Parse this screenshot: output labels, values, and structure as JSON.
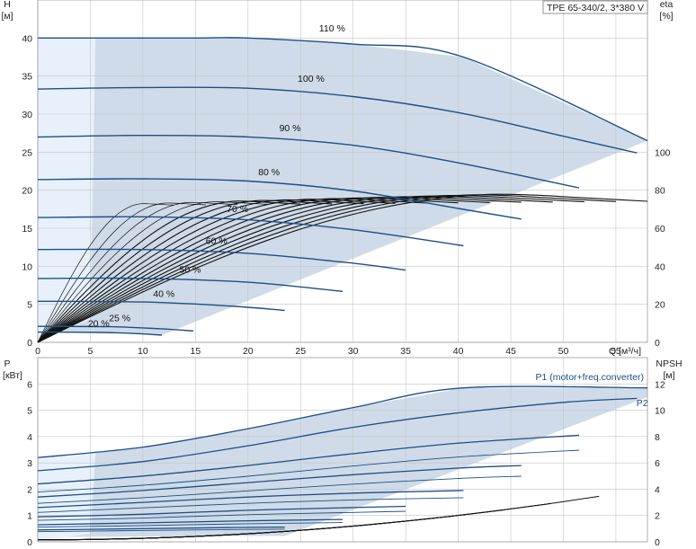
{
  "title": "TPE 65-340/2, 3*380 V",
  "colors": {
    "curve": "#1d4f86",
    "region": "#cfdbe8",
    "region_light": "#e8f1fb",
    "grid": "#c4c4c4",
    "eff": "#111111"
  },
  "chart_data": [
    {
      "type": "line",
      "name": "QH",
      "ylabel": "H",
      "yunit": "[м]",
      "y2label": "eta",
      "y2unit": "[%]",
      "xlabel": "Q [м³/ч]",
      "xlim": [
        0,
        58
      ],
      "ylim": [
        0,
        45
      ],
      "y2lim": [
        0,
        180
      ],
      "xticks": [
        0,
        5,
        10,
        15,
        20,
        25,
        30,
        35,
        40,
        45,
        50,
        55
      ],
      "yticks": [
        0,
        5,
        10,
        15,
        20,
        25,
        30,
        35,
        40
      ],
      "y2ticks": [
        0,
        20,
        40,
        60,
        80,
        100
      ],
      "grid": true,
      "series": [
        {
          "name": "110 %",
          "x": [
            0,
            5,
            10,
            15,
            20,
            30,
            40.5,
            58
          ],
          "y": [
            40,
            40,
            40,
            40,
            40,
            39.2,
            37.5,
            26.5
          ]
        },
        {
          "name": "100 %",
          "x": [
            0,
            10,
            20,
            30,
            40,
            50,
            57
          ],
          "y": [
            33.3,
            33.5,
            33.4,
            32.3,
            30.2,
            27.1,
            24.9
          ]
        },
        {
          "name": "90 %",
          "x": [
            0,
            10,
            20,
            30,
            40,
            51.5
          ],
          "y": [
            27,
            27.2,
            27,
            25.9,
            23.6,
            20.3
          ]
        },
        {
          "name": "80 %",
          "x": [
            0,
            10,
            20,
            30,
            40,
            46
          ],
          "y": [
            21.4,
            21.5,
            21.2,
            19.9,
            17.6,
            16.2
          ]
        },
        {
          "name": "70 %",
          "x": [
            0,
            10,
            20,
            30,
            40.5
          ],
          "y": [
            16.4,
            16.5,
            16.1,
            14.8,
            12.7
          ]
        },
        {
          "name": "60 %",
          "x": [
            0,
            10,
            20,
            30,
            35
          ],
          "y": [
            12.2,
            12.2,
            11.7,
            10.4,
            9.5
          ]
        },
        {
          "name": "50 %",
          "x": [
            0,
            10,
            20,
            29
          ],
          "y": [
            8.4,
            8.4,
            7.9,
            6.7
          ]
        },
        {
          "name": "40 %",
          "x": [
            0,
            10,
            18,
            23.5
          ],
          "y": [
            5.4,
            5.3,
            4.8,
            4.2
          ]
        },
        {
          "name": "25 %",
          "x": [
            0,
            7,
            11.5,
            14.8
          ],
          "y": [
            2.1,
            2.05,
            1.8,
            1.5
          ]
        },
        {
          "name": "20 %",
          "x": [
            0,
            6,
            9.5,
            11.8
          ],
          "y": [
            1.35,
            1.3,
            1.15,
            0.95
          ]
        }
      ],
      "labels": [
        {
          "text": "110 %",
          "x": 28,
          "y": 40.5
        },
        {
          "text": "100 %",
          "x": 26,
          "y": 33.9
        },
        {
          "text": "90 %",
          "x": 24,
          "y": 27.4
        },
        {
          "text": "80 %",
          "x": 22,
          "y": 21.6
        },
        {
          "text": "70 %",
          "x": 19,
          "y": 16.8
        },
        {
          "text": "60 %",
          "x": 17,
          "y": 12.6
        },
        {
          "text": "50 %",
          "x": 14.5,
          "y": 8.8
        },
        {
          "text": "40 %",
          "x": 12,
          "y": 5.6
        },
        {
          "text": "25 %",
          "x": 7.8,
          "y": 2.4
        },
        {
          "text": "20 %",
          "x": 5.8,
          "y": 1.7
        }
      ]
    },
    {
      "type": "line",
      "name": "Power/NPSH",
      "ylabel": "P",
      "yunit": "[кВт]",
      "y2label": "NPSH",
      "y2unit": "[м]",
      "xlim": [
        0,
        58
      ],
      "ylim": [
        0,
        7
      ],
      "y2lim": [
        0,
        14
      ],
      "yticks": [
        0,
        1,
        2,
        3,
        4,
        5,
        6
      ],
      "y2ticks": [
        0,
        2,
        4,
        6,
        8,
        10,
        12
      ],
      "grid": true,
      "series": [
        {
          "name": "P1 (motor+freq.converter)",
          "x": [
            0,
            10,
            20,
            30,
            40.5,
            58
          ],
          "y": [
            3.2,
            3.6,
            4.3,
            5.1,
            5.85,
            5.85
          ]
        },
        {
          "name": "P2",
          "x": [
            0,
            10,
            20,
            30,
            40,
            50,
            57
          ],
          "y": [
            2.7,
            3.05,
            3.65,
            4.35,
            4.9,
            5.3,
            5.45
          ]
        },
        {
          "name": "",
          "x": [
            0,
            10,
            20,
            30,
            40,
            51.5
          ],
          "y": [
            2.2,
            2.5,
            2.9,
            3.35,
            3.75,
            4.05
          ]
        },
        {
          "name": "",
          "x": [
            0,
            10,
            20,
            30,
            40,
            46
          ],
          "y": [
            1.7,
            1.95,
            2.25,
            2.55,
            2.8,
            2.9
          ]
        },
        {
          "name": "",
          "x": [
            0,
            10,
            20,
            30,
            40.5
          ],
          "y": [
            1.3,
            1.5,
            1.7,
            1.85,
            1.95
          ]
        },
        {
          "name": "",
          "x": [
            0,
            10,
            20,
            30,
            35
          ],
          "y": [
            0.95,
            1.05,
            1.2,
            1.3,
            1.35
          ]
        },
        {
          "name": "",
          "x": [
            0,
            10,
            20,
            29
          ],
          "y": [
            0.65,
            0.72,
            0.8,
            0.85
          ]
        },
        {
          "name": "",
          "x": [
            0,
            10,
            18,
            23.5
          ],
          "y": [
            0.45,
            0.5,
            0.54,
            0.56
          ]
        }
      ],
      "labels": [
        {
          "text": "P1 (motor+freq.converter)",
          "x": 52.5,
          "y": 6.15
        },
        {
          "text": "P2",
          "x": 57.5,
          "y": 5.15
        }
      ]
    }
  ]
}
